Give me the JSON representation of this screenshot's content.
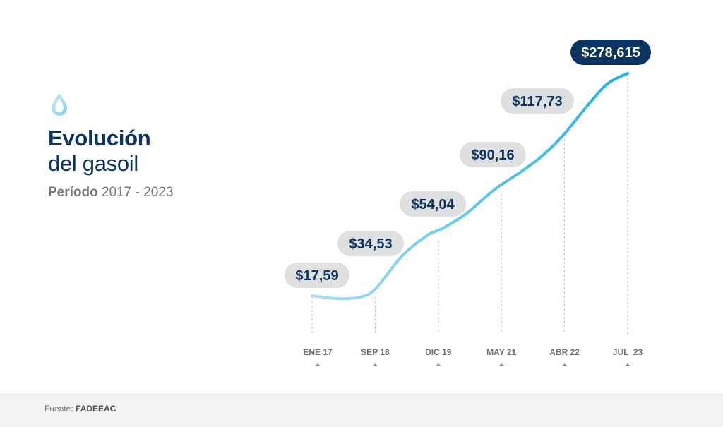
{
  "title": {
    "line1": "Evolución",
    "line2": "del gasoil",
    "period_label": "Período",
    "period_value": "2017 - 2023"
  },
  "icon": "water-drop-icon",
  "footer": {
    "label": "Fuente:",
    "source": "FADEEAC"
  },
  "colors": {
    "title": "#0b3560",
    "line_start": "#a8dff5",
    "line_end": "#1fb3e3",
    "pill": "#dfe0e2",
    "pill_highlight": "#0b3560",
    "label_text": "#0b3560",
    "axis_text": "#6d6f72"
  },
  "chart_data": {
    "type": "line",
    "title": "Evolución del gasoil",
    "subtitle": "Período 2017 - 2023",
    "categories": [
      "ENE 17",
      "SEP 18",
      "DIC 19",
      "MAY 21",
      "ABR 22",
      "JUL  23"
    ],
    "values": [
      17.59,
      34.53,
      54.04,
      90.16,
      117.73,
      278.615
    ],
    "labels": [
      "$17,59",
      "$34,53",
      "$54,04",
      "$90,16",
      "$117,73",
      "$278,615"
    ],
    "xlabel": "",
    "ylabel": "",
    "grid": false
  }
}
